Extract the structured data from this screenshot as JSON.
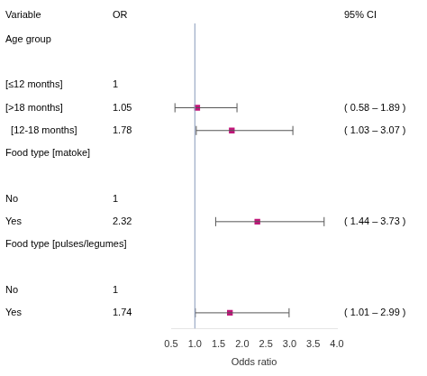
{
  "chart_data": {
    "type": "forest",
    "columns": [
      "Variable",
      "OR",
      "95% CI"
    ],
    "categories": [
      "Age group",
      null,
      "[≤12 months]",
      "[>18 months]",
      "  [12-18 months]",
      "Food type [matoke]",
      null,
      "No",
      "Yes",
      "Food type [pulses/legumes]",
      null,
      "No",
      "Yes"
    ],
    "values": [
      null,
      null,
      1,
      1.05,
      1.78,
      null,
      null,
      1,
      2.32,
      null,
      null,
      1,
      1.74
    ],
    "ci_lo": [
      null,
      null,
      null,
      0.58,
      1.03,
      null,
      null,
      null,
      1.44,
      null,
      null,
      null,
      1.01
    ],
    "ci_hi": [
      null,
      null,
      null,
      1.89,
      3.07,
      null,
      null,
      null,
      3.73,
      null,
      null,
      null,
      2.99
    ],
    "ci_labels": [
      null,
      null,
      null,
      "( 0.58 – 1.89 )",
      "( 1.03 – 3.07 )",
      null,
      null,
      null,
      "( 1.44 – 3.73 )",
      null,
      null,
      null,
      "( 1.01 – 2.99 )"
    ],
    "x_label": "Odds ratio",
    "xlim": [
      0.5,
      4.0
    ],
    "xticks": [
      0.5,
      {
        "value": 1,
        "label": "1.0"
      },
      1.5,
      {
        "value": 2,
        "label": "2.0"
      },
      2.5,
      {
        "value": 3,
        "label": "3.0"
      },
      3.5,
      {
        "value": 4,
        "label": "4.0"
      }
    ],
    "ref_line": 1,
    "color": "#C0177A",
    "ci_color": "#555555",
    "ref_line_color": "#8899BB",
    "grid": false,
    "data_labels": true
  }
}
